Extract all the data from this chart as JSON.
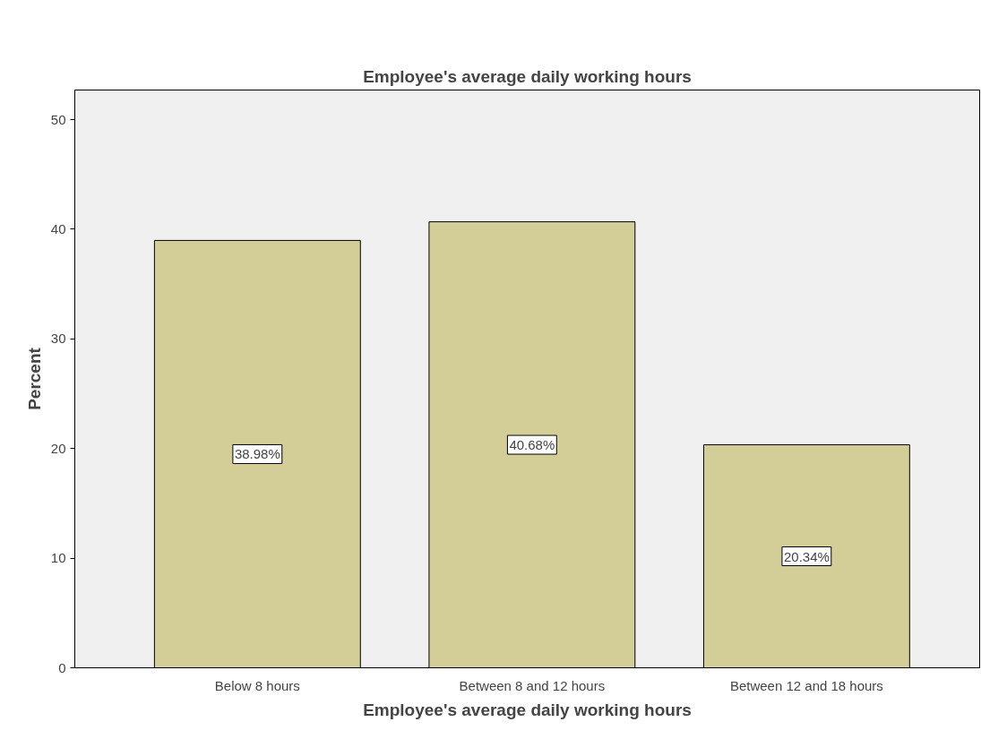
{
  "chart_data": {
    "type": "bar",
    "title": "Employee's average daily working hours",
    "xlabel": "Employee's average daily working hours",
    "ylabel": "Percent",
    "categories": [
      "Below 8 hours",
      "Between 8 and 12 hours",
      "Between 12 and 18 hours"
    ],
    "values": [
      38.98,
      40.68,
      20.34
    ],
    "value_labels": [
      "38.98%",
      "40.68%",
      "20.34%"
    ],
    "color": "#d3ce98",
    "ylim": [
      0,
      52.7
    ],
    "yticks": [
      0,
      10,
      20,
      30,
      40,
      50
    ],
    "grid": false
  }
}
